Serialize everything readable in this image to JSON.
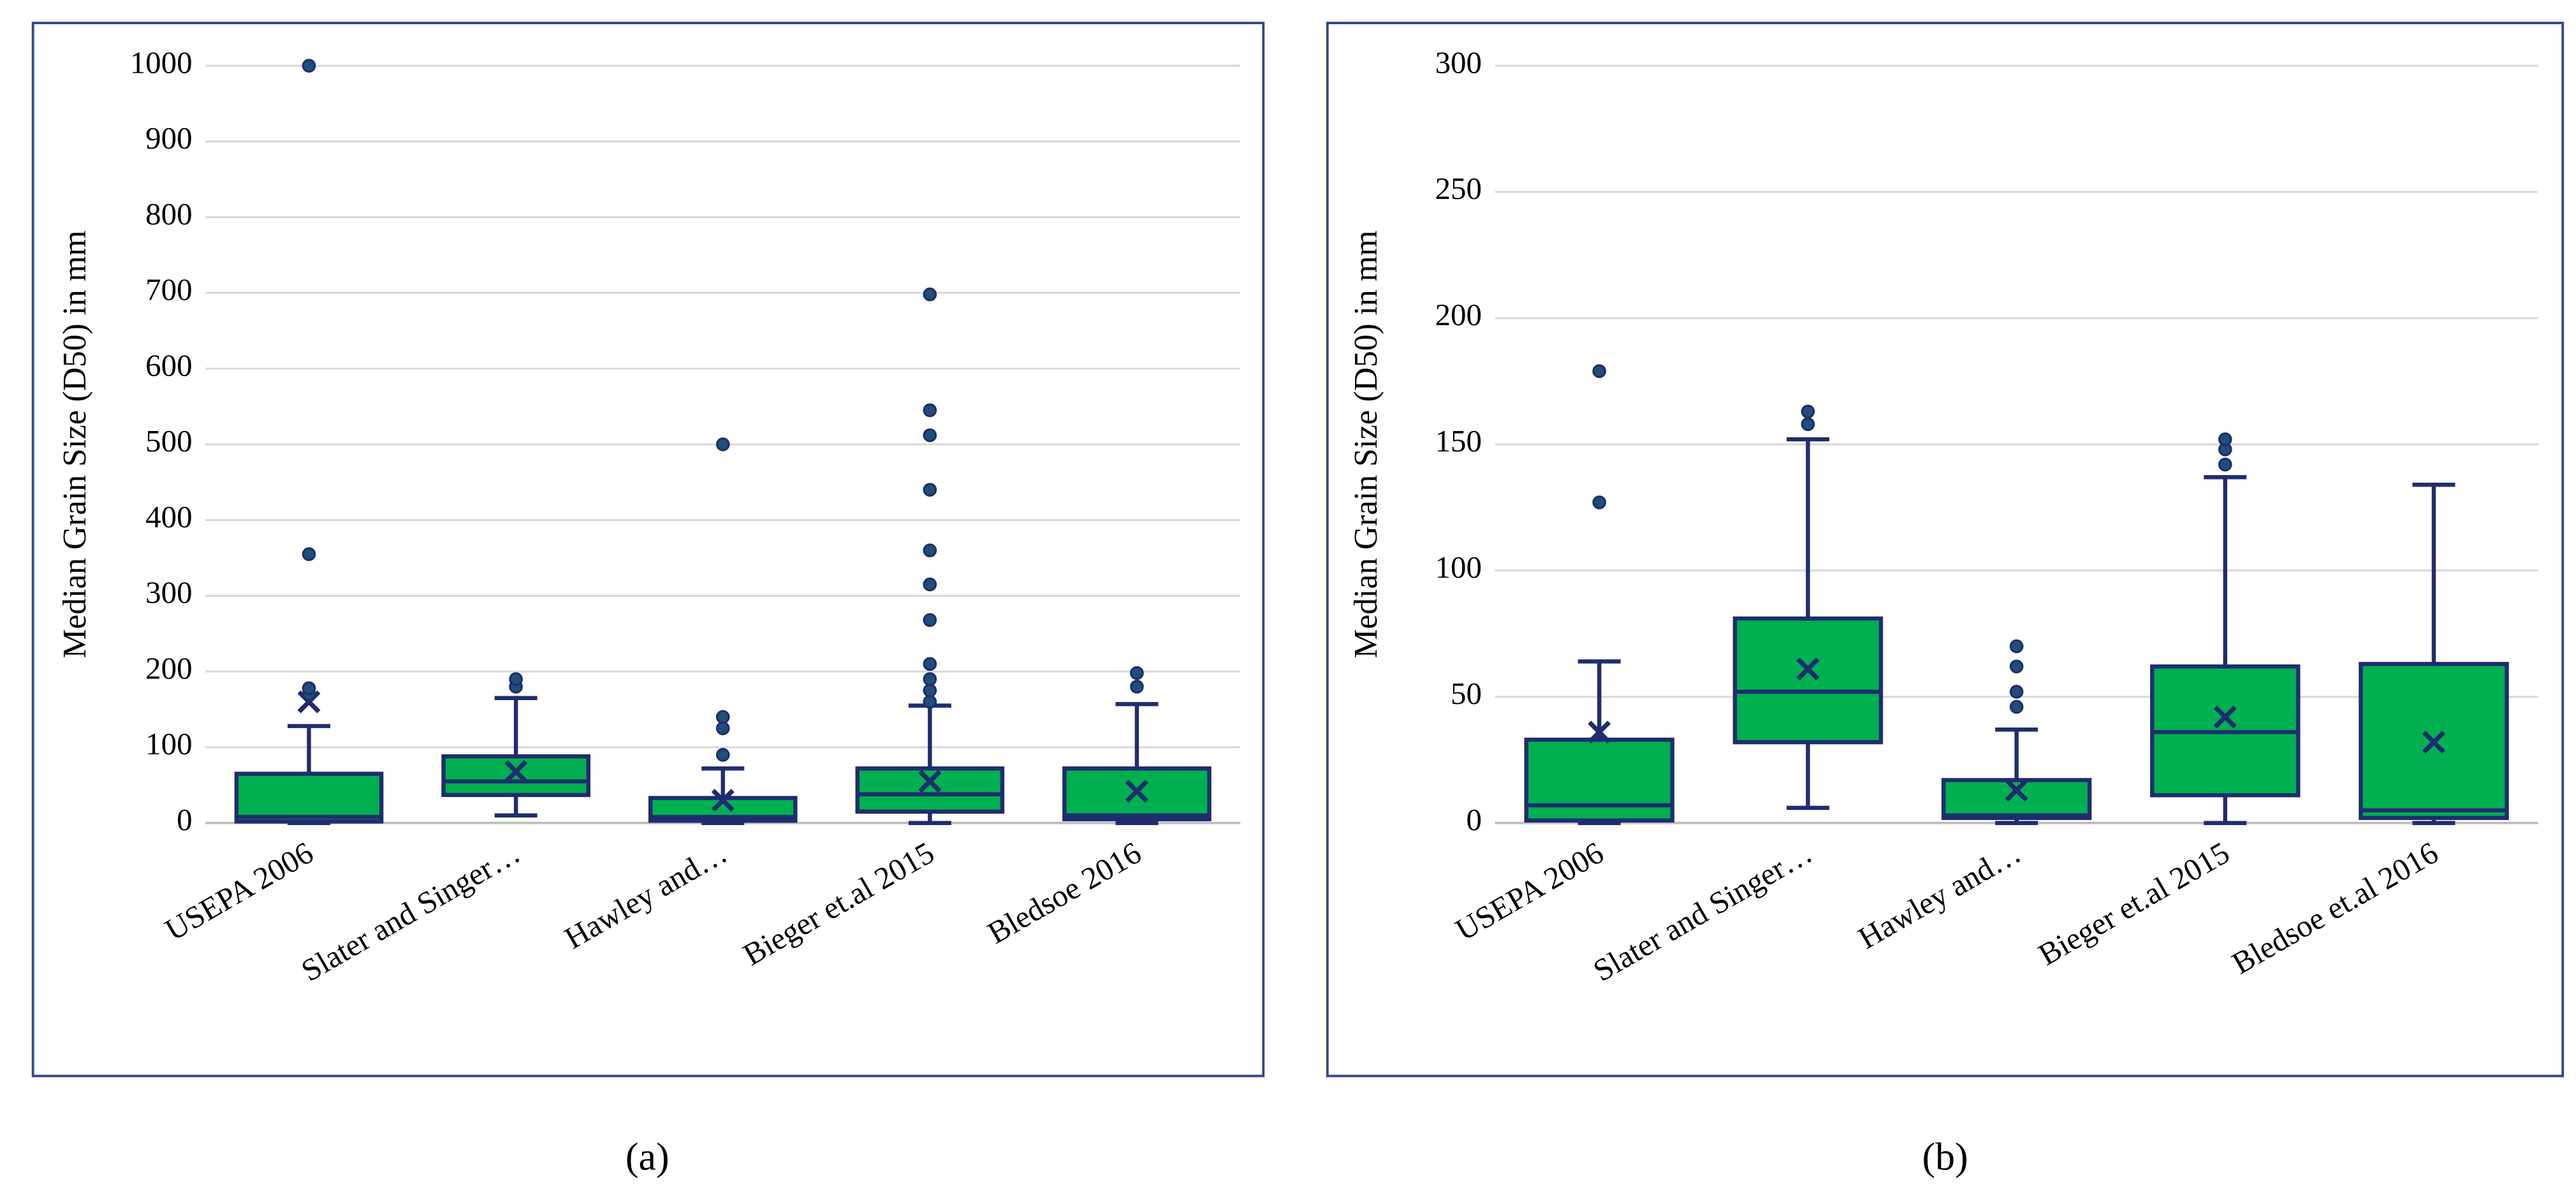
{
  "chart_data": [
    {
      "type": "box",
      "caption": "(a)",
      "y_label": "Median Grain Size (D50) in mm",
      "categories": [
        "USEPA 2006",
        "Slater and Singer…",
        "Hawley and…",
        "Bieger et.al 2015",
        "Bledsoe 2016"
      ],
      "color": "#00b050",
      "line_color": "#1f2d6e",
      "grid": true,
      "ylim": [
        0,
        1000
      ],
      "yticks": [
        0,
        100,
        200,
        300,
        400,
        500,
        600,
        700,
        800,
        900,
        1000
      ],
      "boxes": [
        {
          "min": 0,
          "q1": 2,
          "median": 8,
          "q3": 65,
          "max": 128,
          "mean": 160,
          "outliers": [
            170,
            178,
            355,
            1000
          ]
        },
        {
          "min": 10,
          "q1": 37,
          "median": 55,
          "q3": 88,
          "max": 165,
          "mean": 68,
          "outliers": [
            180,
            190
          ]
        },
        {
          "min": 0,
          "q1": 3,
          "median": 8,
          "q3": 33,
          "max": 72,
          "mean": 30,
          "outliers": [
            90,
            125,
            140,
            500
          ]
        },
        {
          "min": 0,
          "q1": 15,
          "median": 38,
          "q3": 72,
          "max": 155,
          "mean": 55,
          "outliers": [
            160,
            175,
            190,
            210,
            268,
            315,
            360,
            440,
            512,
            545,
            698
          ]
        },
        {
          "min": 0,
          "q1": 5,
          "median": 10,
          "q3": 72,
          "max": 157,
          "mean": 42,
          "outliers": [
            180,
            198
          ]
        }
      ]
    },
    {
      "type": "box",
      "caption": "(b)",
      "y_label": "Median Grain Size (D50) in mm",
      "categories": [
        "USEPA 2006",
        "Slater and Singer…",
        "Hawley and…",
        "Bieger et.al 2015",
        "Bledsoe et.al 2016"
      ],
      "color": "#00b050",
      "line_color": "#1f2d6e",
      "grid": true,
      "ylim": [
        0,
        300
      ],
      "yticks": [
        0,
        50,
        100,
        150,
        200,
        250,
        300
      ],
      "boxes": [
        {
          "min": 0,
          "q1": 1,
          "median": 7,
          "q3": 33,
          "max": 64,
          "mean": 36,
          "outliers": [
            127,
            179
          ]
        },
        {
          "min": 6,
          "q1": 32,
          "median": 52,
          "q3": 81,
          "max": 152,
          "mean": 61,
          "outliers": [
            158,
            163
          ]
        },
        {
          "min": 0,
          "q1": 2,
          "median": 3,
          "q3": 17,
          "max": 37,
          "mean": 13,
          "outliers": [
            46,
            52,
            62,
            70
          ]
        },
        {
          "min": 0,
          "q1": 11,
          "median": 36,
          "q3": 62,
          "max": 137,
          "mean": 42,
          "outliers": [
            142,
            148,
            152
          ]
        },
        {
          "min": 0,
          "q1": 2,
          "median": 5,
          "q3": 63,
          "max": 134,
          "mean": 32,
          "outliers": []
        }
      ]
    }
  ]
}
